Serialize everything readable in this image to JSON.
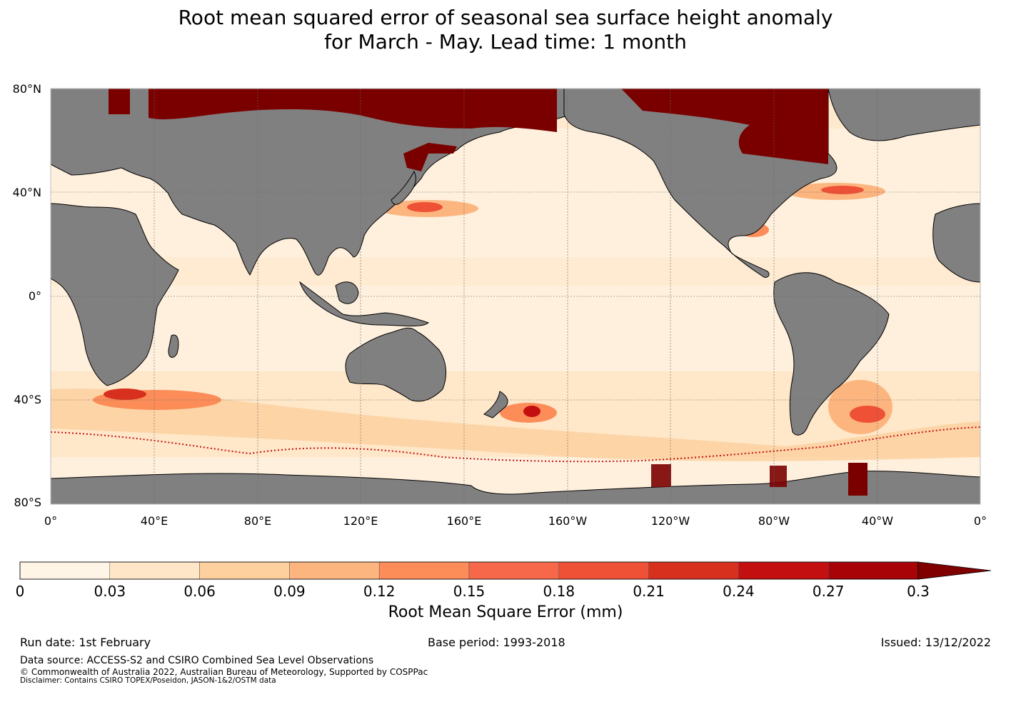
{
  "title": {
    "line1": "Root mean squared error of seasonal sea surface height anomaly",
    "line2": "for March - May. Lead time: 1 month"
  },
  "axes": {
    "lat_labels": [
      "80°N",
      "40°N",
      "0°",
      "40°S",
      "80°S"
    ],
    "lon_labels": [
      "0°",
      "40°E",
      "80°E",
      "120°E",
      "160°E",
      "160°W",
      "120°W",
      "80°W",
      "40°W",
      "0°"
    ]
  },
  "colors": {
    "land": "#808080",
    "ice": "#7a0000",
    "ocean_base": "#fef0dd",
    "scale": [
      "#fff5e6",
      "#ffe6c7",
      "#fdd09d",
      "#fdb57f",
      "#fc8d59",
      "#f7684a",
      "#ef5136",
      "#d7301f",
      "#c30f10",
      "#a80307",
      "#800000"
    ]
  },
  "colorbar": {
    "ticks": [
      "0",
      "0.03",
      "0.06",
      "0.09",
      "0.12",
      "0.15",
      "0.18",
      "0.21",
      "0.24",
      "0.27",
      "0.3"
    ],
    "label": "Root Mean Square Error (mm)"
  },
  "footer": {
    "run_date": "Run date: 1st February",
    "base_period": "Base period: 1993-2018",
    "issued": "Issued: 13/12/2022",
    "data_source": "Data source: ACCESS-S2 and CSIRO Combined Sea Level Observations",
    "copyright": "© Commonwealth of Australia 2022, Australian Bureau of Meteorology, Supported by COSPPac",
    "disclaimer": "Disclaimer: Contains CSIRO TOPEX/Poseidon, JASON-1&2/OSTM data"
  }
}
